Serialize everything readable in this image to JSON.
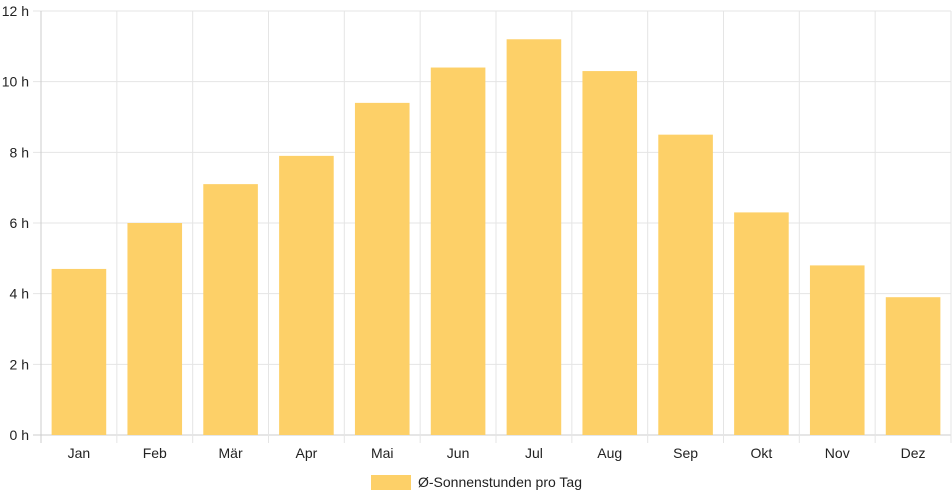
{
  "chart_data": {
    "type": "bar",
    "categories": [
      "Jan",
      "Feb",
      "Mär",
      "Apr",
      "Mai",
      "Jun",
      "Jul",
      "Aug",
      "Sep",
      "Okt",
      "Nov",
      "Dez"
    ],
    "series": [
      {
        "name": "Ø-Sonnenstunden pro Tag",
        "values": [
          4.7,
          6.0,
          7.1,
          7.9,
          9.4,
          10.4,
          11.2,
          10.3,
          8.5,
          6.3,
          4.8,
          3.9
        ]
      }
    ],
    "y_ticks": [
      "0 h",
      "2 h",
      "4 h",
      "6 h",
      "8 h",
      "10 h",
      "12 h"
    ],
    "ylim": [
      0,
      12
    ],
    "grid": true,
    "legend_position": "bottom",
    "colors": {
      "bar": "#FDD068",
      "grid": "#e5e5e5",
      "axis": "#cccccc",
      "text": "#222222"
    }
  }
}
